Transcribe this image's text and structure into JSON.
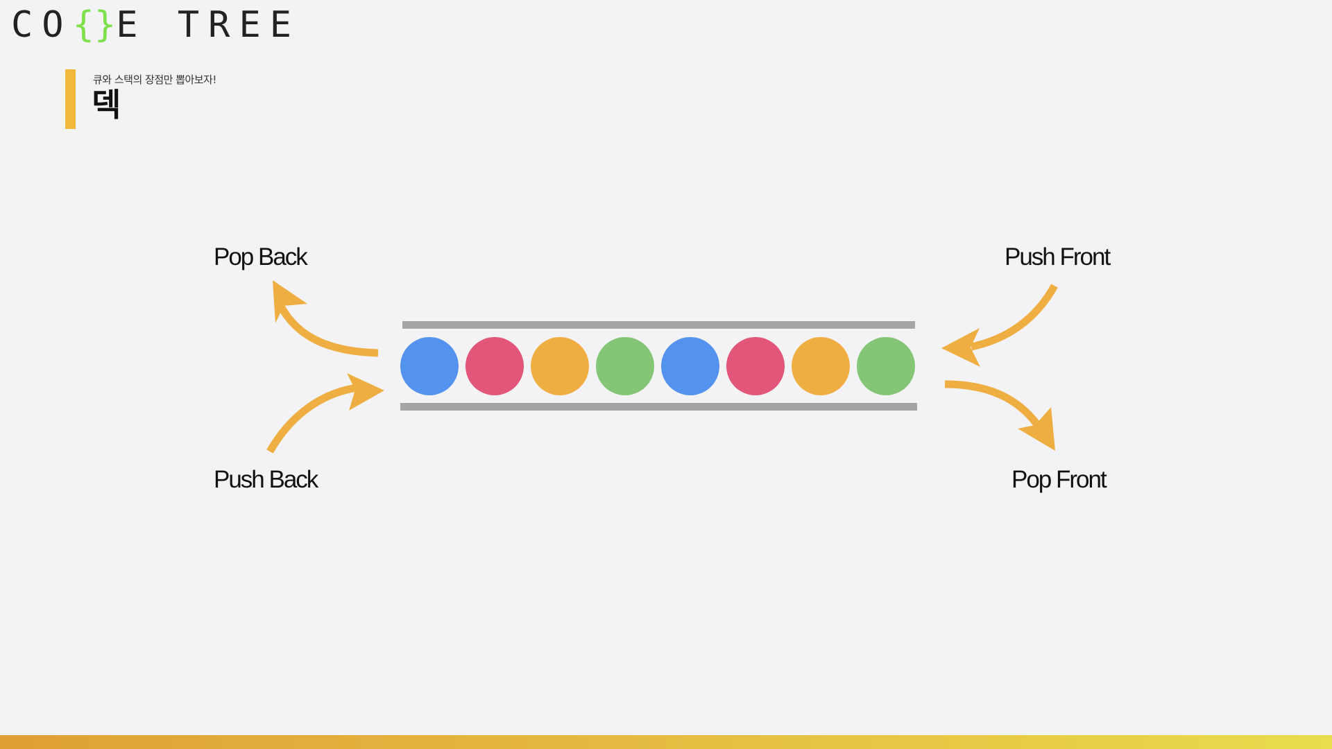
{
  "brand": {
    "logo_part1": "CO",
    "logo_brace": "{}",
    "logo_part2": "E TREE",
    "brace_color": "#7ee04a"
  },
  "header": {
    "subtitle": "큐와 스택의 장점만 뽑아보자!",
    "title": "덱",
    "accent_color": "#f2b83c"
  },
  "operations": {
    "pop_back": "Pop Back",
    "push_back": "Push Back",
    "push_front": "Push Front",
    "pop_front": "Pop Front",
    "arrow_color": "#eeae42"
  },
  "deque": {
    "elements": [
      {
        "color": "#5492f0",
        "name": "blue"
      },
      {
        "color": "#e25679",
        "name": "pink"
      },
      {
        "color": "#eeae42",
        "name": "orange"
      },
      {
        "color": "#84c675",
        "name": "green"
      },
      {
        "color": "#5492f0",
        "name": "blue"
      },
      {
        "color": "#e25679",
        "name": "pink"
      },
      {
        "color": "#eeae42",
        "name": "orange"
      },
      {
        "color": "#84c675",
        "name": "green"
      }
    ],
    "rail_color": "#a5a5a7"
  }
}
